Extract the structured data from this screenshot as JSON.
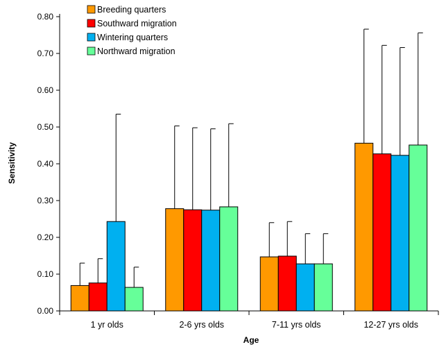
{
  "chart_data": {
    "type": "bar",
    "title": "",
    "xlabel": "Age",
    "ylabel": "Sensitivity",
    "ylim": [
      0,
      0.8
    ],
    "yticks": [
      "0.00",
      "0.10",
      "0.20",
      "0.30",
      "0.40",
      "0.50",
      "0.60",
      "0.70",
      "0.80"
    ],
    "categories": [
      "1 yr olds",
      "2-6 yrs olds",
      "7-11 yrs olds",
      "12-27 yrs olds"
    ],
    "error_bars": "upper",
    "legend_position": "top-left",
    "grid": false,
    "series": [
      {
        "name": "Breeding quarters",
        "color": "#ff9900",
        "values": [
          0.069,
          0.278,
          0.147,
          0.456
        ],
        "error_upper": [
          0.13,
          0.503,
          0.24,
          0.766
        ]
      },
      {
        "name": "Southward migration",
        "color": "#ff0000",
        "values": [
          0.076,
          0.275,
          0.149,
          0.427
        ],
        "error_upper": [
          0.142,
          0.498,
          0.243,
          0.722
        ]
      },
      {
        "name": "Wintering quarters",
        "color": "#00b0f0",
        "values": [
          0.243,
          0.274,
          0.128,
          0.423
        ],
        "error_upper": [
          0.535,
          0.495,
          0.21,
          0.716
        ]
      },
      {
        "name": "Northward migration",
        "color": "#66ff99",
        "values": [
          0.064,
          0.283,
          0.128,
          0.451
        ],
        "error_upper": [
          0.119,
          0.509,
          0.21,
          0.756
        ]
      }
    ]
  }
}
